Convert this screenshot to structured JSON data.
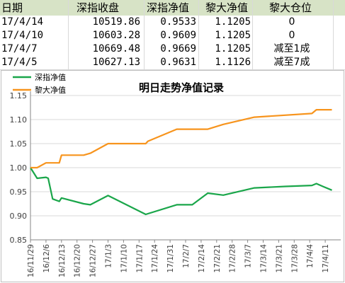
{
  "table": {
    "headers": [
      "日期",
      "深指收盘",
      "深指净值",
      "黎大净值",
      "黎大仓位"
    ],
    "rows": [
      [
        "17/4/14",
        "10519.86",
        "0.9533",
        "1.1205",
        "0"
      ],
      [
        "17/4/10",
        "10603.28",
        "0.9609",
        "1.1205",
        "0"
      ],
      [
        "17/4/7",
        "10669.48",
        "0.9669",
        "1.1205",
        "减至1成"
      ],
      [
        "17/4/5",
        "10627.13",
        "0.9631",
        "1.1126",
        "减至7成"
      ]
    ]
  },
  "chart_data": {
    "type": "line",
    "title": "明日走势净值记录",
    "legend_position": "top-left",
    "ylim": [
      0.85,
      1.15
    ],
    "yticks": [
      "0.85",
      "0.90",
      "0.95",
      "1.00",
      "1.05",
      "1.10",
      "1.15"
    ],
    "categories": [
      "16/11/29",
      "16/12/6",
      "16/12/13",
      "16/12/20",
      "16/12/27",
      "17/1/3",
      "17/1/10",
      "17/1/17",
      "17/1/24",
      "17/1/31",
      "17/2/7",
      "17/2/14",
      "17/2/21",
      "17/2/28",
      "17/3/7",
      "17/3/14",
      "17/3/21",
      "17/3/28",
      "17/4/4",
      "17/4/11"
    ],
    "x_start": "2016-11-29",
    "series": [
      {
        "name": "深指净值",
        "color": "#1aa64a",
        "points": [
          [
            "2016-11-29",
            1.0
          ],
          [
            "2016-12-02",
            0.978
          ],
          [
            "2016-12-06",
            0.98
          ],
          [
            "2016-12-07",
            0.978
          ],
          [
            "2016-12-09",
            0.935
          ],
          [
            "2016-12-12",
            0.93
          ],
          [
            "2016-12-13",
            0.937
          ],
          [
            "2016-12-23",
            0.925
          ],
          [
            "2016-12-26",
            0.923
          ],
          [
            "2017-01-03",
            0.942
          ],
          [
            "2017-01-20",
            0.903
          ],
          [
            "2017-02-03",
            0.923
          ],
          [
            "2017-02-10",
            0.923
          ],
          [
            "2017-02-17",
            0.947
          ],
          [
            "2017-02-24",
            0.943
          ],
          [
            "2017-03-10",
            0.958
          ],
          [
            "2017-03-24",
            0.961
          ],
          [
            "2017-04-05",
            0.9631
          ],
          [
            "2017-04-07",
            0.9669
          ],
          [
            "2017-04-10",
            0.9609
          ],
          [
            "2017-04-14",
            0.9533
          ]
        ]
      },
      {
        "name": "黎大净值",
        "color": "#f7941d",
        "points": [
          [
            "2016-11-29",
            1.0
          ],
          [
            "2016-12-02",
            1.0
          ],
          [
            "2016-12-06",
            1.01
          ],
          [
            "2016-12-12",
            1.01
          ],
          [
            "2016-12-13",
            1.026
          ],
          [
            "2016-12-23",
            1.026
          ],
          [
            "2016-12-26",
            1.03
          ],
          [
            "2017-01-03",
            1.05
          ],
          [
            "2017-01-20",
            1.05
          ],
          [
            "2017-01-21",
            1.055
          ],
          [
            "2017-02-03",
            1.08
          ],
          [
            "2017-02-17",
            1.08
          ],
          [
            "2017-02-24",
            1.09
          ],
          [
            "2017-03-10",
            1.105
          ],
          [
            "2017-04-05",
            1.1126
          ],
          [
            "2017-04-07",
            1.1205
          ],
          [
            "2017-04-10",
            1.1205
          ],
          [
            "2017-04-14",
            1.1205
          ]
        ]
      }
    ]
  }
}
